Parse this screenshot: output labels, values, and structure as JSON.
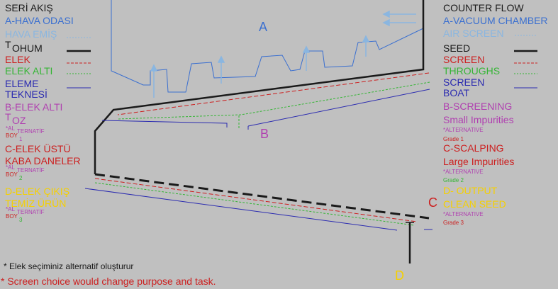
{
  "colors": {
    "background": "#c0c0c0",
    "black": "#1a1a1a",
    "blue": "#3a6fd0",
    "light_blue": "#8ab6e0",
    "red": "#cc1f1f",
    "green": "#35b535",
    "navy": "#2b2bb0",
    "magenta": "#b040b0",
    "yellow": "#f5d000"
  },
  "left_legend": {
    "title": "SERİ AKIŞ",
    "a": "A-HAVA ODASI",
    "a2": "HAVA EMİŞ",
    "seed_t": "T",
    "seed": "OHUM",
    "screen": "ELEK",
    "throughs": "ELEK ALTI",
    "boat1": "ELEME",
    "boat2": "TEKNESİ",
    "b": "B-ELEK ALTI",
    "b_t": "T",
    "b2": "OZ",
    "alt_b_star": "*AL",
    "alt_b_word": "TERNATİF",
    "alt_b_boy": "BOY",
    "alt_b_num": "1",
    "c1": "C-ELEK ÜSTÜ",
    "c2": "KABA DANELER",
    "alt_c_star": "*AL",
    "alt_c_word": "TERNATİF",
    "alt_c_boy": "BOY",
    "alt_c_num": "2",
    "d1": "D-ELEK ÇIKIŞ",
    "d2": "TEMİZ ÜRÜN",
    "alt_d_star": "*AL",
    "alt_d_word": "TERNATİF",
    "alt_d_boy": "BOY",
    "alt_d_num": "3"
  },
  "right_legend": {
    "title": "COUNTER FLOW",
    "a": "A-VACUUM CHAMBER",
    "a2": "AIR SCREEN",
    "seed": "SEED",
    "screen": "SCREEN",
    "throughs": "THROUGHS",
    "boat1": "SCREEN",
    "boat2": "BOAT",
    "b": "B-SCREENING",
    "b2": "Small Impurities",
    "alt_b": "*ALTERNATIVE",
    "alt_b_grade": "Grade 1",
    "c": "C-SCALPING",
    "c2": "Large Impurities",
    "alt_c": "*ALTERNATIVE",
    "alt_c_grade": "Grade 2",
    "d": "D- OUTPUT",
    "d2": "CLEAN SEED",
    "alt_d": "*ALTERNATIVE",
    "alt_d_grade": "Grade 3"
  },
  "diagram_labels": {
    "a": "A",
    "b": "B",
    "c": "C",
    "d": "D"
  },
  "footnotes": {
    "tr": "* Elek seçiminiz alternatif oluşturur",
    "en": "* Screen choice would change purpose and task."
  }
}
